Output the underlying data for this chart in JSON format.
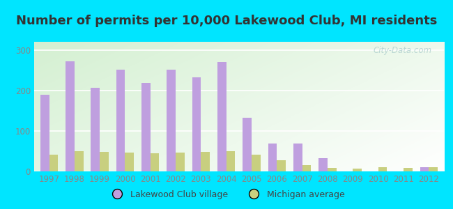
{
  "title": "Number of permits per 10,000 Lakewood Club, MI residents",
  "years": [
    1997,
    1998,
    1999,
    2000,
    2001,
    2002,
    2003,
    2004,
    2005,
    2006,
    2007,
    2008,
    2009,
    2010,
    2011,
    2012
  ],
  "lakewood": [
    190,
    272,
    207,
    252,
    218,
    252,
    232,
    270,
    132,
    68,
    68,
    32,
    0,
    0,
    0,
    11
  ],
  "michigan": [
    42,
    50,
    48,
    46,
    44,
    46,
    48,
    50,
    42,
    28,
    15,
    8,
    7,
    10,
    9,
    11
  ],
  "lakewood_color": "#bf9fdf",
  "michigan_color": "#c8cf7f",
  "outer_bg": "#00e5ff",
  "ylim": [
    0,
    320
  ],
  "yticks": [
    0,
    100,
    200,
    300
  ],
  "bar_width": 0.35,
  "legend_lakewood": "Lakewood Club village",
  "legend_michigan": "Michigan average",
  "watermark": "City-Data.com",
  "title_fontsize": 13,
  "tick_fontsize": 8.5,
  "tick_color": "#888888",
  "title_color": "#333333"
}
